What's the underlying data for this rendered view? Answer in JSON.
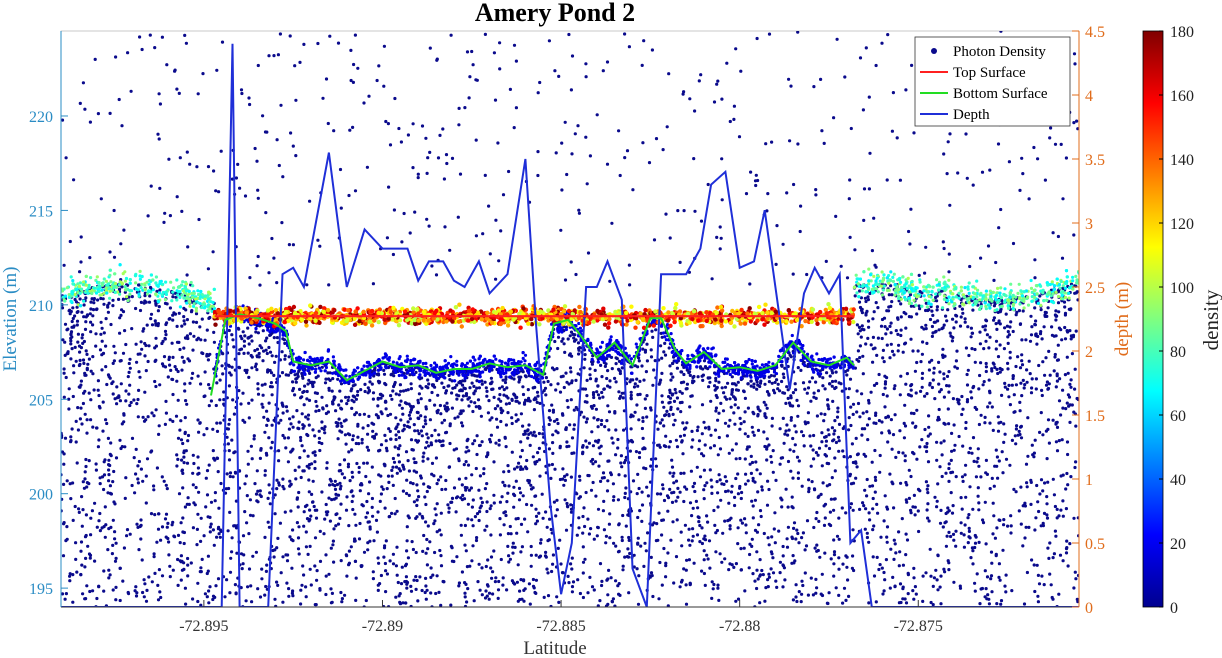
{
  "chart_data": {
    "type": "scatter",
    "title": "Amery Pond 2",
    "xlabel": "Latitude",
    "ylabel_left": "Elevation (m)",
    "ylabel_right": "depth (m)",
    "colorbar_label": "density",
    "xlim": [
      -72.899,
      -72.8705
    ],
    "ylim_left": [
      194,
      224.5
    ],
    "ylim_right": [
      0,
      4.5
    ],
    "colorbar_lim": [
      0,
      180
    ],
    "x_ticks": [
      -72.895,
      -72.89,
      -72.885,
      -72.88,
      -72.875
    ],
    "x_tick_labels": [
      "-72.895",
      "-72.89",
      "-72.885",
      "-72.88",
      "-72.875"
    ],
    "y_left_ticks": [
      195,
      200,
      205,
      210,
      215,
      220
    ],
    "y_left_tick_labels": [
      "195",
      "200",
      "205",
      "210",
      "215",
      "220"
    ],
    "y_right_ticks": [
      0,
      0.5,
      1,
      1.5,
      2,
      2.5,
      3,
      3.5,
      4,
      4.5
    ],
    "y_right_tick_labels": [
      "0",
      "0.5",
      "1",
      "1.5",
      "2",
      "2.5",
      "3",
      "3.5",
      "4",
      "4.5"
    ],
    "colorbar_ticks": [
      0,
      20,
      40,
      60,
      80,
      100,
      120,
      140,
      160,
      180
    ],
    "colorbar_tick_labels": [
      "0",
      "20",
      "40",
      "60",
      "80",
      "100",
      "120",
      "140",
      "160",
      "180"
    ],
    "legend": {
      "placement": "top-right",
      "entries": [
        "Photon Density",
        "Top Surface",
        "Bottom Surface",
        "Depth"
      ]
    },
    "colors": {
      "left_axis": "#2a8cc4",
      "right_axis": "#e06c1b",
      "photon": "#0a0a8c",
      "top_surface": "#ff2020",
      "bottom_surface": "#22dd22",
      "depth": "#1f2fd8"
    },
    "series": [
      {
        "name": "Top Surface",
        "axis": "left",
        "x": [
          -72.8947,
          -72.894,
          -72.893,
          -72.892,
          -72.891,
          -72.89,
          -72.889,
          -72.888,
          -72.887,
          -72.886,
          -72.885,
          -72.884,
          -72.883,
          -72.882,
          -72.881,
          -72.88,
          -72.879,
          -72.878,
          -72.877,
          -72.8768
        ],
        "y": [
          209.4,
          209.4,
          209.4,
          209.4,
          209.4,
          209.4,
          209.4,
          209.4,
          209.4,
          209.4,
          209.4,
          209.4,
          209.4,
          209.4,
          209.4,
          209.4,
          209.4,
          209.4,
          209.4,
          209.4
        ]
      },
      {
        "name": "Bottom Surface",
        "axis": "left",
        "x": [
          -72.8948,
          -72.8944,
          -72.894,
          -72.8935,
          -72.893,
          -72.8927,
          -72.8925,
          -72.892,
          -72.8915,
          -72.891,
          -72.8905,
          -72.89,
          -72.8895,
          -72.889,
          -72.8885,
          -72.888,
          -72.8875,
          -72.887,
          -72.8865,
          -72.886,
          -72.8855,
          -72.8852,
          -72.8848,
          -72.8845,
          -72.884,
          -72.8835,
          -72.883,
          -72.8825,
          -72.8822,
          -72.8818,
          -72.8815,
          -72.881,
          -72.8805,
          -72.88,
          -72.8795,
          -72.879,
          -72.8785,
          -72.878,
          -72.8775,
          -72.877,
          -72.8768
        ],
        "y": [
          205.2,
          209.2,
          209.5,
          209.3,
          209.0,
          208.6,
          207.0,
          206.8,
          207.0,
          206.0,
          206.5,
          207.0,
          206.7,
          206.8,
          206.4,
          206.6,
          206.6,
          206.9,
          206.7,
          206.8,
          206.3,
          209.0,
          209.2,
          208.5,
          207.2,
          208.0,
          206.8,
          209.3,
          209.3,
          207.6,
          206.9,
          207.5,
          206.6,
          206.7,
          206.5,
          206.8,
          208.0,
          207.0,
          206.8,
          207.2,
          206.8
        ]
      },
      {
        "name": "Depth",
        "axis": "right",
        "x": [
          -72.899,
          -72.8945,
          -72.8942,
          -72.894,
          -72.8935,
          -72.8932,
          -72.8928,
          -72.8925,
          -72.8922,
          -72.8918,
          -72.8915,
          -72.8912,
          -72.891,
          -72.8905,
          -72.89,
          -72.8897,
          -72.8893,
          -72.889,
          -72.8887,
          -72.8883,
          -72.888,
          -72.8877,
          -72.8873,
          -72.887,
          -72.8865,
          -72.886,
          -72.8857,
          -72.8853,
          -72.885,
          -72.8847,
          -72.8843,
          -72.884,
          -72.8837,
          -72.8833,
          -72.883,
          -72.8826,
          -72.8822,
          -72.8818,
          -72.8815,
          -72.8811,
          -72.8808,
          -72.8804,
          -72.88,
          -72.8796,
          -72.8793,
          -72.879,
          -72.8786,
          -72.8782,
          -72.8779,
          -72.8775,
          -72.8772,
          -72.8769,
          -72.8766,
          -72.8763,
          -72.876,
          -72.8705
        ],
        "y": [
          0,
          0,
          4.4,
          0,
          0,
          0,
          2.6,
          2.65,
          2.5,
          3.1,
          3.55,
          2.9,
          2.5,
          2.95,
          2.8,
          2.8,
          2.8,
          2.55,
          2.7,
          2.7,
          2.55,
          2.5,
          2.7,
          2.45,
          2.6,
          3.5,
          2.2,
          0.8,
          0.1,
          0.5,
          2.5,
          2.5,
          2.7,
          2.4,
          0.3,
          0,
          2.6,
          2.6,
          2.6,
          2.8,
          3.3,
          3.4,
          2.65,
          2.7,
          3.1,
          2.5,
          1.7,
          2.45,
          2.65,
          2.45,
          2.6,
          0.5,
          0.6,
          0,
          0,
          0
        ]
      }
    ]
  }
}
